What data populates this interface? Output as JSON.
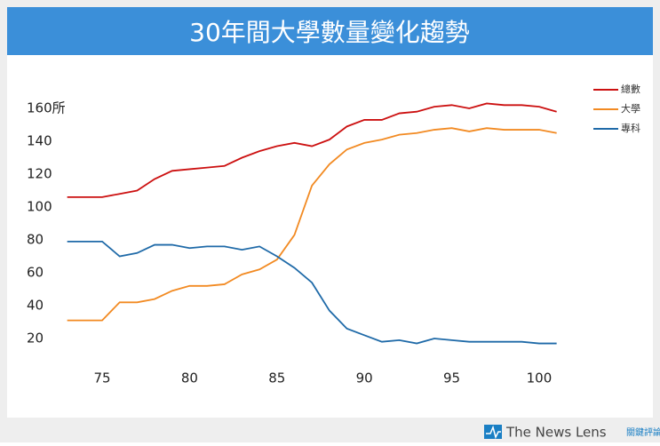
{
  "chart_data": {
    "type": "line",
    "title": "30年間大學數量變化趨勢",
    "x": [
      73,
      74,
      75,
      76,
      77,
      78,
      79,
      80,
      81,
      82,
      83,
      84,
      85,
      86,
      87,
      88,
      89,
      90,
      91,
      92,
      93,
      94,
      95,
      96,
      97,
      98,
      99,
      100,
      101
    ],
    "series": [
      {
        "name": "總數",
        "color": "#cc1010",
        "values": [
          106,
          106,
          106,
          108,
          110,
          117,
          122,
          123,
          124,
          125,
          130,
          134,
          137,
          139,
          137,
          141,
          149,
          153,
          153,
          157,
          158,
          161,
          162,
          160,
          163,
          162,
          162,
          161,
          158
        ]
      },
      {
        "name": "大學",
        "color": "#f28a22",
        "values": [
          31,
          31,
          31,
          42,
          42,
          44,
          49,
          52,
          52,
          53,
          59,
          62,
          68,
          83,
          113,
          126,
          135,
          139,
          141,
          144,
          145,
          147,
          148,
          146,
          148,
          147,
          147,
          147,
          145
        ]
      },
      {
        "name": "專科",
        "color": "#1f6aa8",
        "values": [
          79,
          79,
          79,
          70,
          72,
          77,
          77,
          75,
          76,
          76,
          74,
          76,
          70,
          63,
          54,
          37,
          26,
          22,
          18,
          19,
          17,
          20,
          19,
          18,
          18,
          18,
          18,
          17,
          17
        ]
      }
    ],
    "xlim": [
      71,
      103
    ],
    "xticks": [
      75,
      80,
      85,
      90,
      95,
      100
    ],
    "ylim": [
      10,
      170
    ],
    "yticks": [
      20,
      40,
      60,
      80,
      100,
      120,
      140,
      {
        "value": 160,
        "label": "160所"
      }
    ],
    "grid": false,
    "legend": "top-right"
  },
  "footer": {
    "brand": "The News Lens",
    "brand_cn": "關鍵評論"
  }
}
